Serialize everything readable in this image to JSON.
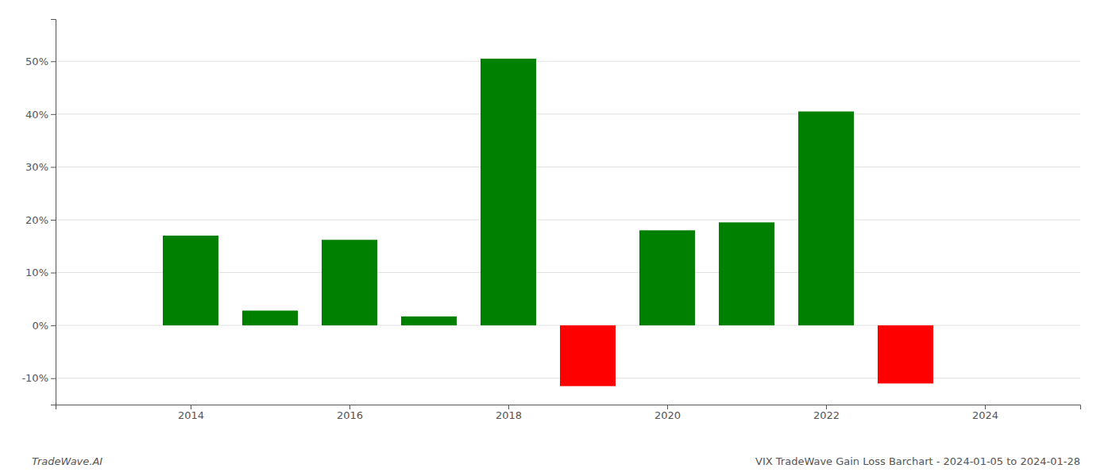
{
  "chart_data": {
    "type": "bar",
    "title": "VIX TradeWave Gain Loss Barchart - 2024-01-05 to 2024-01-28",
    "annotations": [
      "TradeWave.AI"
    ],
    "x": [
      2014,
      2015,
      2016,
      2017,
      2018,
      2019,
      2020,
      2021,
      2022,
      2023
    ],
    "values": [
      17.0,
      2.8,
      16.2,
      1.7,
      50.5,
      -11.5,
      18.0,
      19.5,
      40.5,
      -11.0
    ],
    "colors": [
      "#008000",
      "#008000",
      "#008000",
      "#008000",
      "#008000",
      "#ff0000",
      "#008000",
      "#008000",
      "#008000",
      "#ff0000"
    ],
    "xlim": [
      2012.3,
      2025.2
    ],
    "ylim": [
      -15,
      58
    ],
    "xticks": [
      2014,
      2016,
      2018,
      2020,
      2022,
      2024
    ],
    "yticks": [
      {
        "value": -10,
        "label": "-10%"
      },
      {
        "value": 0,
        "label": "0%"
      },
      {
        "value": 10,
        "label": "10%"
      },
      {
        "value": 20,
        "label": "20%"
      },
      {
        "value": 30,
        "label": "30%"
      },
      {
        "value": 40,
        "label": "40%"
      },
      {
        "value": 50,
        "label": "50%"
      }
    ],
    "grid": true
  }
}
